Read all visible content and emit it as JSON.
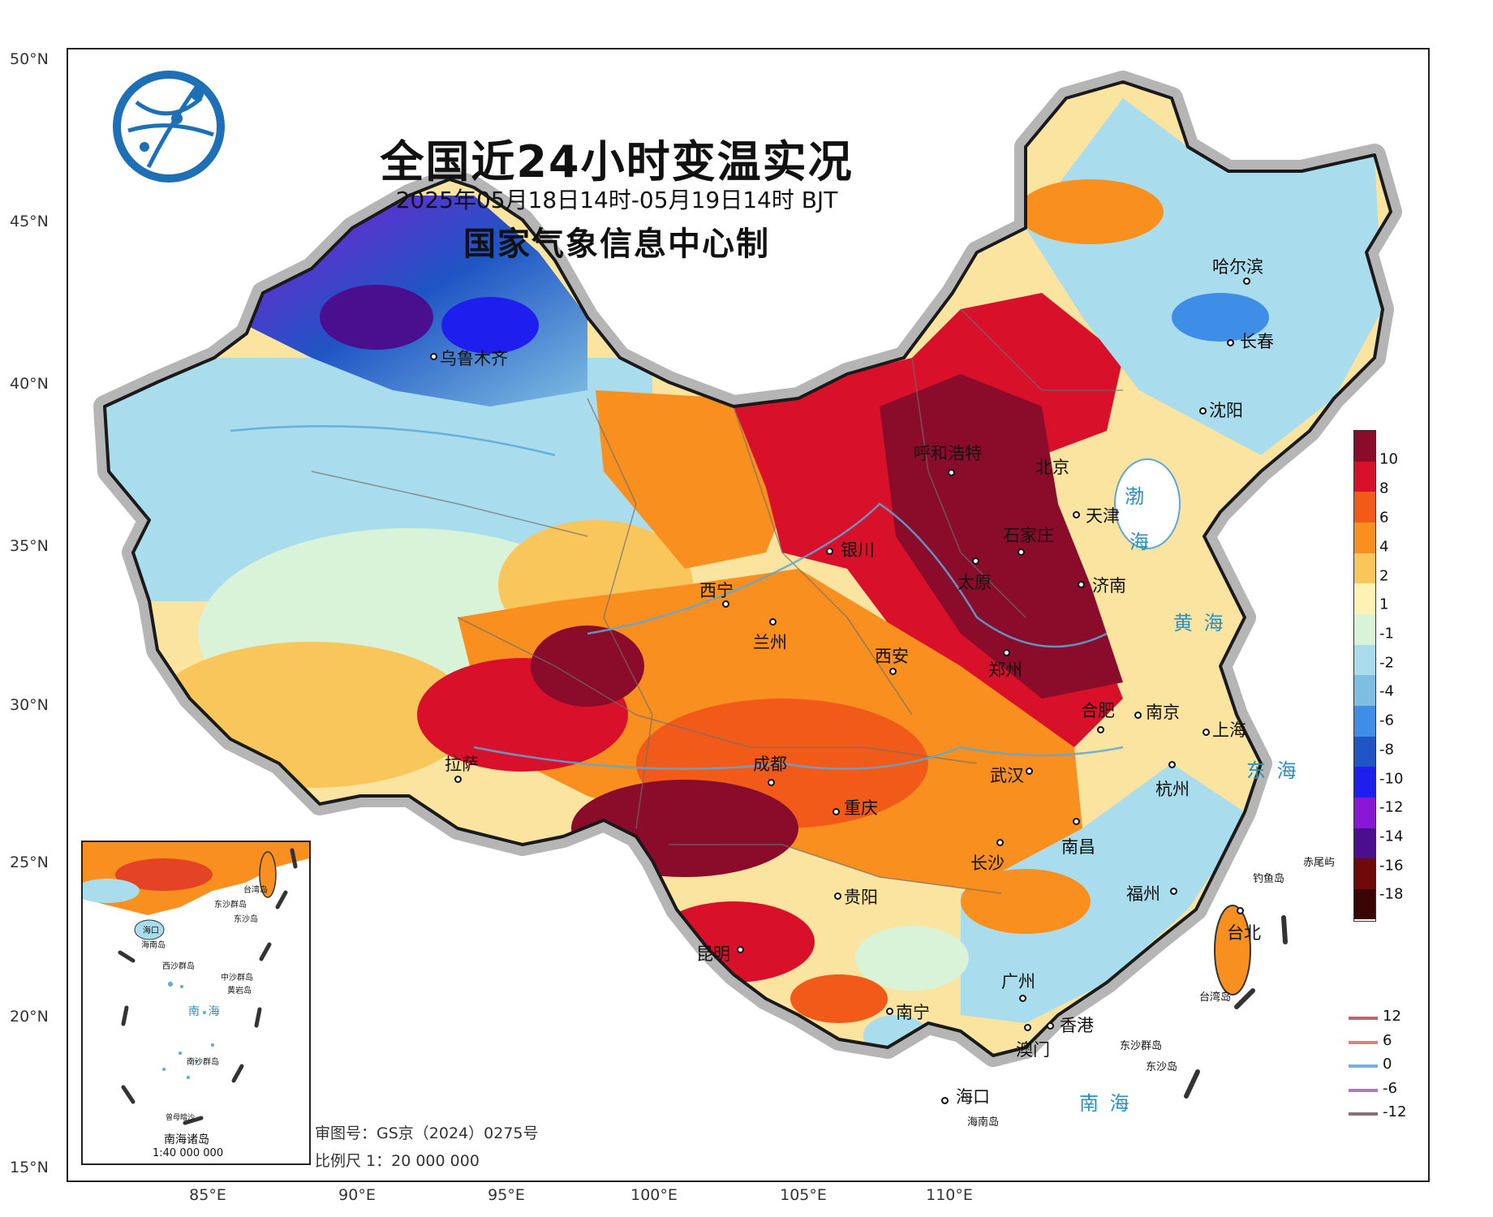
{
  "map": {
    "title": "全国近24小时变温实况",
    "period": "2025年05月18日14时-05月19日14时 BJT",
    "producer": "国家气象信息中心制",
    "latitude_labels": [
      "50°N",
      "45°N",
      "40°N",
      "35°N",
      "30°N",
      "25°N",
      "20°N",
      "15°N"
    ],
    "longitude_labels": [
      "85°E",
      "90°E",
      "95°E",
      "100°E",
      "105°E",
      "110°E"
    ],
    "logo": "globe-network-logo",
    "review_number": "审图号：GS京（2024）0275号",
    "scale": "比例尺 1：20 000 000"
  },
  "cities": [
    {
      "name": "哈尔滨"
    },
    {
      "name": "长春"
    },
    {
      "name": "沈阳"
    },
    {
      "name": "乌鲁木齐"
    },
    {
      "name": "呼和浩特"
    },
    {
      "name": "北京"
    },
    {
      "name": "天津"
    },
    {
      "name": "石家庄"
    },
    {
      "name": "银川"
    },
    {
      "name": "太原"
    },
    {
      "name": "济南"
    },
    {
      "name": "西宁"
    },
    {
      "name": "兰州"
    },
    {
      "name": "郑州"
    },
    {
      "name": "西安"
    },
    {
      "name": "合肥"
    },
    {
      "name": "南京"
    },
    {
      "name": "上海"
    },
    {
      "name": "拉萨"
    },
    {
      "name": "成都"
    },
    {
      "name": "武汉"
    },
    {
      "name": "杭州"
    },
    {
      "name": "重庆"
    },
    {
      "name": "长沙"
    },
    {
      "name": "南昌"
    },
    {
      "name": "贵阳"
    },
    {
      "name": "福州"
    },
    {
      "name": "台北"
    },
    {
      "name": "昆明"
    },
    {
      "name": "广州"
    },
    {
      "name": "南宁"
    },
    {
      "name": "香港"
    },
    {
      "name": "澳门"
    },
    {
      "name": "海口"
    }
  ],
  "seas": {
    "bohai": "渤",
    "bohai2": "海",
    "yellow_sea": "黄  海",
    "east_sea": "东  海",
    "south_sea": "南  海"
  },
  "islands": {
    "chiwei": "赤尾屿",
    "diaoyu": "钓鱼岛",
    "taiwan": "台湾岛",
    "dongsha": "东沙群岛",
    "dongsha_island": "东沙岛",
    "hainan": "海南岛"
  },
  "inset": {
    "label": "南海诸岛",
    "scale": "1:40 000 000",
    "labels": [
      "东沙群岛",
      "台湾岛",
      "海口",
      "海南岛",
      "西沙群岛",
      "中沙群岛",
      "黄岩岛",
      "南  海",
      "南沙群岛",
      "曾母暗沙",
      "东沙岛"
    ]
  },
  "legend": {
    "colors": [
      "#8a0b2a",
      "#d8102a",
      "#f25a1a",
      "#f88f1e",
      "#f9c65c",
      "#fdf1b3",
      "#d9f3d9",
      "#a9dcec",
      "#7fbee3",
      "#3e8ee8",
      "#1f55c4",
      "#1e1eee",
      "#8a17d6",
      "#4a0f8f",
      "#6e0a0a",
      "#3a0505"
    ],
    "ticks": [
      "10",
      "8",
      "6",
      "4",
      "2",
      "1",
      "-1",
      "-2",
      "-4",
      "-6",
      "-8",
      "-10",
      "-12",
      "-14",
      "-16",
      "-18"
    ]
  },
  "contours": [
    {
      "value": "12",
      "color": "#c0627a"
    },
    {
      "value": "6",
      "color": "#e77a7a"
    },
    {
      "value": "0",
      "color": "#7aaee0"
    },
    {
      "value": "-6",
      "color": "#a57ad0"
    },
    {
      "value": "-12",
      "color": "#8a6e78"
    }
  ]
}
